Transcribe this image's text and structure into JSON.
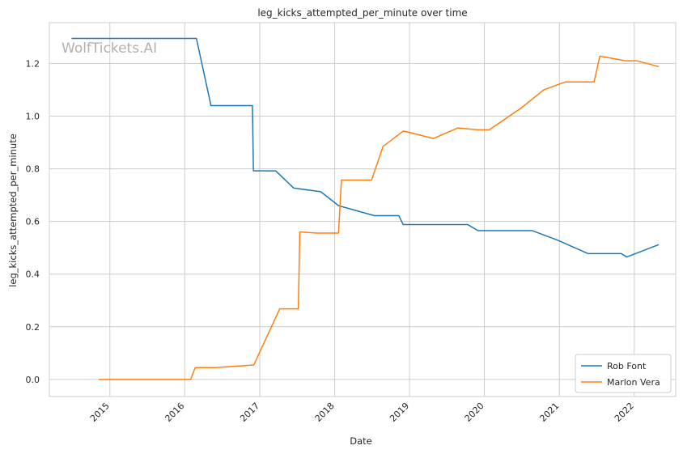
{
  "chart_data": {
    "type": "line",
    "title": "leg_kicks_attempted_per_minute over time",
    "xlabel": "Date",
    "ylabel": "leg_kicks_attempted_per_minute",
    "watermark": "WolfTickets.AI",
    "x_ticks": [
      "2015",
      "2016",
      "2017",
      "2018",
      "2019",
      "2020",
      "2021",
      "2022"
    ],
    "y_ticks": [
      "0.0",
      "0.2",
      "0.4",
      "0.6",
      "0.8",
      "1.0",
      "1.2"
    ],
    "ylim": [
      -0.065,
      1.355
    ],
    "xlim": [
      "2014-03-12",
      "2022-07-22"
    ],
    "grid": true,
    "legend_position": "lower-right",
    "series": [
      {
        "name": "Rob Font",
        "color": "#1f77b4",
        "points": [
          [
            "2014-06-28",
            1.295
          ],
          [
            "2016-02-27",
            1.295
          ],
          [
            "2016-05-08",
            1.04
          ],
          [
            "2016-11-26",
            1.04
          ],
          [
            "2016-12-01",
            0.792
          ],
          [
            "2017-03-20",
            0.792
          ],
          [
            "2017-06-15",
            0.727
          ],
          [
            "2017-10-25",
            0.713
          ],
          [
            "2018-01-20",
            0.66
          ],
          [
            "2018-07-14",
            0.622
          ],
          [
            "2018-11-10",
            0.622
          ],
          [
            "2018-12-01",
            0.588
          ],
          [
            "2019-10-12",
            0.588
          ],
          [
            "2019-12-01",
            0.565
          ],
          [
            "2020-08-22",
            0.565
          ],
          [
            "2020-12-20",
            0.53
          ],
          [
            "2021-05-20",
            0.478
          ],
          [
            "2021-10-30",
            0.478
          ],
          [
            "2021-11-25",
            0.465
          ],
          [
            "2022-04-30",
            0.512
          ]
        ]
      },
      {
        "name": "Marlon Vera",
        "color": "#ff7f0e",
        "points": [
          [
            "2014-11-08",
            0.0
          ],
          [
            "2016-01-30",
            0.0
          ],
          [
            "2016-02-21",
            0.045
          ],
          [
            "2016-05-29",
            0.045
          ],
          [
            "2016-12-03",
            0.055
          ],
          [
            "2017-04-08",
            0.268
          ],
          [
            "2017-07-08",
            0.268
          ],
          [
            "2017-07-15",
            0.56
          ],
          [
            "2017-10-07",
            0.556
          ],
          [
            "2018-01-20",
            0.556
          ],
          [
            "2018-02-03",
            0.757
          ],
          [
            "2018-06-30",
            0.757
          ],
          [
            "2018-08-25",
            0.885
          ],
          [
            "2018-12-01",
            0.943
          ],
          [
            "2018-12-22",
            0.94
          ],
          [
            "2019-04-27",
            0.915
          ],
          [
            "2019-08-24",
            0.955
          ],
          [
            "2019-11-30",
            0.948
          ],
          [
            "2020-01-25",
            0.948
          ],
          [
            "2020-06-27",
            1.03
          ],
          [
            "2020-10-17",
            1.1
          ],
          [
            "2021-01-30",
            1.13
          ],
          [
            "2021-06-19",
            1.13
          ],
          [
            "2021-07-17",
            1.228
          ],
          [
            "2021-11-20",
            1.21
          ],
          [
            "2022-01-15",
            1.21
          ],
          [
            "2022-04-30",
            1.188
          ]
        ]
      }
    ]
  }
}
